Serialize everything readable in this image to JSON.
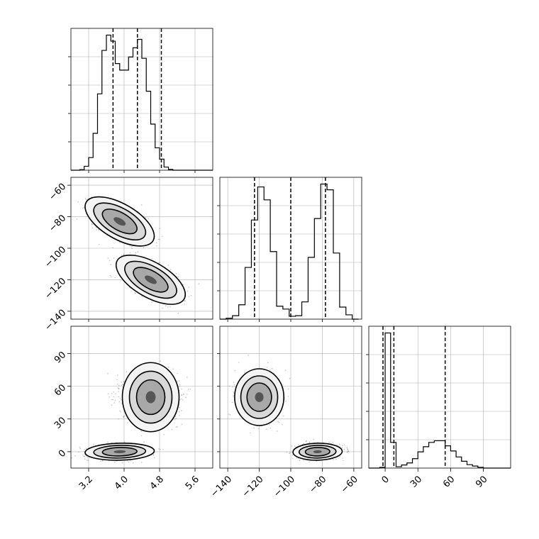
{
  "chart_data": {
    "type": "corner",
    "parameters": [
      {
        "range": [
          2.8,
          6.0
        ],
        "ticks": [
          3.2,
          4.0,
          4.8,
          5.6
        ],
        "tick_labels": [
          "3.2",
          "4.0",
          "4.8",
          "5.6"
        ],
        "quantiles": [
          3.75,
          4.3,
          4.84
        ],
        "histogram": {
          "bin_edges": [
            2.8,
            2.9,
            3.0,
            3.1,
            3.2,
            3.3,
            3.4,
            3.5,
            3.6,
            3.7,
            3.8,
            3.9,
            4.0,
            4.1,
            4.2,
            4.3,
            4.4,
            4.5,
            4.6,
            4.7,
            4.8,
            4.9,
            5.0,
            5.1,
            5.2,
            5.3,
            5.4,
            5.5,
            5.6,
            5.7,
            5.8,
            5.9,
            6.0
          ],
          "counts": [
            0,
            0,
            2,
            15,
            48,
            140,
            290,
            455,
            513,
            490,
            405,
            380,
            380,
            430,
            465,
            497,
            425,
            300,
            175,
            85,
            42,
            12,
            3,
            0,
            0,
            0,
            0,
            0,
            0,
            0,
            0,
            0
          ]
        }
      },
      {
        "range": [
          -145,
          -55
        ],
        "ticks": [
          -140,
          -120,
          -100,
          -80,
          -60
        ],
        "tick_labels": [
          "−140",
          "−120",
          "−100",
          "−80",
          "−60"
        ],
        "quantiles": [
          -123,
          -100,
          -78
        ],
        "histogram": {
          "bin_edges": [
            -145,
            -141,
            -137,
            -133,
            -129,
            -125,
            -121,
            -117,
            -113,
            -109,
            -105,
            -101,
            -97,
            -93,
            -89,
            -85,
            -81,
            -77,
            -73,
            -69,
            -65,
            -61,
            -57
          ],
          "counts": [
            0,
            3,
            12,
            50,
            180,
            345,
            460,
            415,
            235,
            45,
            35,
            10,
            12,
            60,
            215,
            350,
            470,
            450,
            230,
            42,
            15,
            0
          ]
        }
      },
      {
        "range": [
          -15,
          115
        ],
        "ticks": [
          0,
          30,
          60,
          90
        ],
        "tick_labels": [
          "0",
          "30",
          "60",
          "90"
        ],
        "quantiles": [
          -2,
          8,
          55
        ],
        "histogram": {
          "bin_edges": [
            -15,
            -10,
            -5,
            0,
            5,
            10,
            15,
            20,
            25,
            30,
            35,
            40,
            45,
            50,
            55,
            60,
            65,
            70,
            75,
            80,
            85,
            90,
            95,
            100,
            105,
            110,
            115
          ],
          "counts": [
            0,
            0,
            4,
            790,
            150,
            8,
            18,
            30,
            55,
            95,
            125,
            150,
            160,
            160,
            130,
            100,
            65,
            40,
            20,
            12,
            4,
            0,
            0,
            0,
            0,
            0
          ]
        }
      }
    ],
    "clusters": [
      {
        "center": [
          3.9,
          -83,
          0
        ],
        "sigma": [
          0.3,
          6,
          3
        ],
        "corr01": -0.6,
        "corr02": 0.1,
        "corr12": 0.05,
        "weight": 0.5
      },
      {
        "center": [
          4.6,
          -120,
          50
        ],
        "sigma": [
          0.3,
          6,
          10
        ],
        "corr01": -0.6,
        "corr02": 0.0,
        "corr12": 0.0,
        "weight": 0.5
      }
    ],
    "grid": true,
    "colors": {
      "contour": "#000000",
      "scatter": "#555555",
      "quantile_line": "#000000"
    },
    "density_levels_sigma": [
      1.0,
      1.5,
      2.0
    ]
  }
}
